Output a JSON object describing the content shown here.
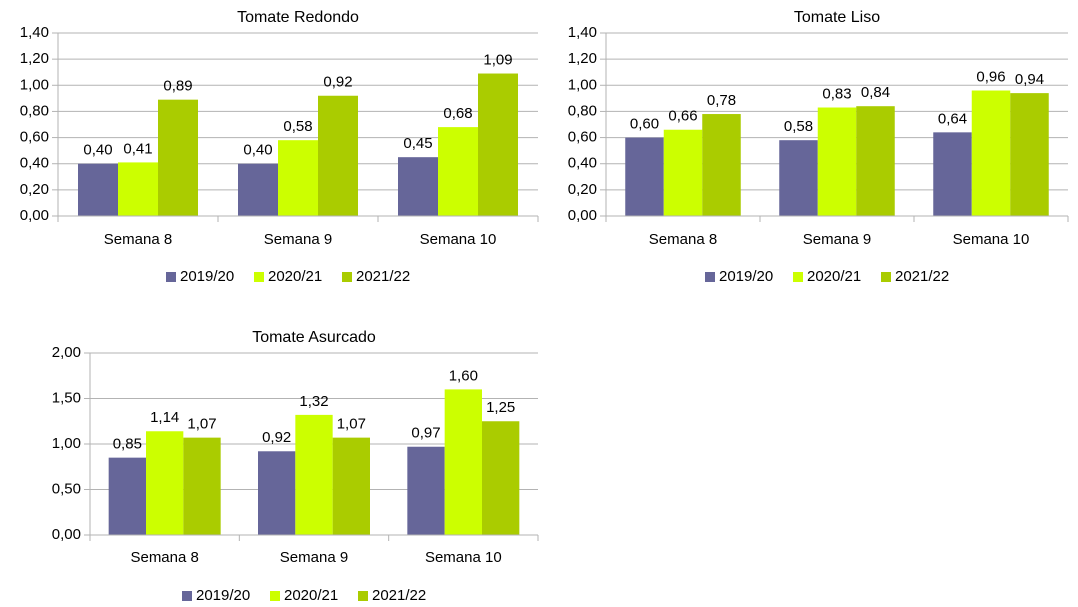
{
  "chart_data": [
    {
      "type": "bar",
      "title": "Tomate Redondo",
      "categories": [
        "Semana 8",
        "Semana 9",
        "Semana 10"
      ],
      "series": [
        {
          "name": "2019/20",
          "color": "#666699",
          "values": [
            0.4,
            0.4,
            0.45
          ],
          "value_labels": [
            "0,40",
            "0,40",
            "0,45"
          ]
        },
        {
          "name": "2020/21",
          "color": "#ccff00",
          "values": [
            0.41,
            0.58,
            0.68
          ],
          "value_labels": [
            "0,41",
            "0,58",
            "0,68"
          ]
        },
        {
          "name": "2021/22",
          "color": "#aacc00",
          "values": [
            0.89,
            0.92,
            1.09
          ],
          "value_labels": [
            "0,89",
            "0,92",
            "1,09"
          ]
        }
      ],
      "ylim": [
        0,
        1.4
      ],
      "yticks": [
        {
          "value": 0,
          "label": "0,00"
        },
        {
          "value": 0.2,
          "label": "0,20"
        },
        {
          "value": 0.4,
          "label": "0,40"
        },
        {
          "value": 0.6,
          "label": "0,60"
        },
        {
          "value": 0.8,
          "label": "0,80"
        },
        {
          "value": 1.0,
          "label": "1,00"
        },
        {
          "value": 1.2,
          "label": "1,20"
        },
        {
          "value": 1.4,
          "label": "1,40"
        }
      ],
      "grid": true,
      "legend": "bottom"
    },
    {
      "type": "bar",
      "title": "Tomate Liso",
      "categories": [
        "Semana 8",
        "Semana 9",
        "Semana 10"
      ],
      "series": [
        {
          "name": "2019/20",
          "color": "#666699",
          "values": [
            0.6,
            0.58,
            0.64
          ],
          "value_labels": [
            "0,60",
            "0,58",
            "0,64"
          ]
        },
        {
          "name": "2020/21",
          "color": "#ccff00",
          "values": [
            0.66,
            0.83,
            0.96
          ],
          "value_labels": [
            "0,66",
            "0,83",
            "0,96"
          ]
        },
        {
          "name": "2021/22",
          "color": "#aacc00",
          "values": [
            0.78,
            0.84,
            0.94
          ],
          "value_labels": [
            "0,78",
            "0,84",
            "0,94"
          ]
        }
      ],
      "ylim": [
        0,
        1.4
      ],
      "yticks": [
        {
          "value": 0,
          "label": "0,00"
        },
        {
          "value": 0.2,
          "label": "0,20"
        },
        {
          "value": 0.4,
          "label": "0,40"
        },
        {
          "value": 0.6,
          "label": "0,60"
        },
        {
          "value": 0.8,
          "label": "0,80"
        },
        {
          "value": 1.0,
          "label": "1,00"
        },
        {
          "value": 1.2,
          "label": "1,20"
        },
        {
          "value": 1.4,
          "label": "1,40"
        }
      ],
      "grid": true,
      "legend": "bottom"
    },
    {
      "type": "bar",
      "title": "Tomate Asurcado",
      "categories": [
        "Semana 8",
        "Semana 9",
        "Semana 10"
      ],
      "series": [
        {
          "name": "2019/20",
          "color": "#666699",
          "values": [
            0.85,
            0.92,
            0.97
          ],
          "value_labels": [
            "0,85",
            "0,92",
            "0,97"
          ]
        },
        {
          "name": "2020/21",
          "color": "#ccff00",
          "values": [
            1.14,
            1.32,
            1.6
          ],
          "value_labels": [
            "1,14",
            "1,32",
            "1,60"
          ]
        },
        {
          "name": "2021/22",
          "color": "#aacc00",
          "values": [
            1.07,
            1.07,
            1.25
          ],
          "value_labels": [
            "1,07",
            "1,07",
            "1,25"
          ]
        }
      ],
      "ylim": [
        0,
        2.0
      ],
      "yticks": [
        {
          "value": 0,
          "label": "0,00"
        },
        {
          "value": 0.5,
          "label": "0,50"
        },
        {
          "value": 1.0,
          "label": "1,00"
        },
        {
          "value": 1.5,
          "label": "1,50"
        },
        {
          "value": 2.0,
          "label": "2,00"
        }
      ],
      "grid": true,
      "legend": "bottom"
    }
  ]
}
